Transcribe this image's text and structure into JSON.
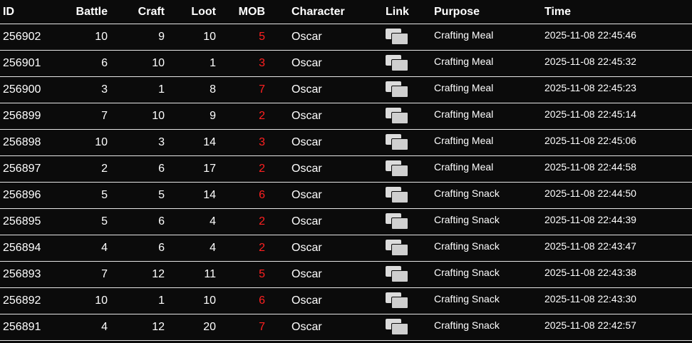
{
  "headers": {
    "id": "ID",
    "battle": "Battle",
    "craft": "Craft",
    "loot": "Loot",
    "mob": "MOB",
    "character": "Character",
    "link": "Link",
    "purpose": "Purpose",
    "time": "Time"
  },
  "colors": {
    "background": "#0b0b0b",
    "mob": "#ff2020"
  },
  "rows": [
    {
      "id": "256902",
      "battle": "10",
      "craft": "9",
      "loot": "10",
      "mob": "5",
      "character": "Oscar",
      "link": "chat-icon",
      "purpose": "Crafting Meal",
      "time": "2025-11-08 22:45:46"
    },
    {
      "id": "256901",
      "battle": "6",
      "craft": "10",
      "loot": "1",
      "mob": "3",
      "character": "Oscar",
      "link": "chat-icon",
      "purpose": "Crafting Meal",
      "time": "2025-11-08 22:45:32"
    },
    {
      "id": "256900",
      "battle": "3",
      "craft": "1",
      "loot": "8",
      "mob": "7",
      "character": "Oscar",
      "link": "chat-icon",
      "purpose": "Crafting Meal",
      "time": "2025-11-08 22:45:23"
    },
    {
      "id": "256899",
      "battle": "7",
      "craft": "10",
      "loot": "9",
      "mob": "2",
      "character": "Oscar",
      "link": "chat-icon",
      "purpose": "Crafting Meal",
      "time": "2025-11-08 22:45:14"
    },
    {
      "id": "256898",
      "battle": "10",
      "craft": "3",
      "loot": "14",
      "mob": "3",
      "character": "Oscar",
      "link": "chat-icon",
      "purpose": "Crafting Meal",
      "time": "2025-11-08 22:45:06"
    },
    {
      "id": "256897",
      "battle": "2",
      "craft": "6",
      "loot": "17",
      "mob": "2",
      "character": "Oscar",
      "link": "chat-icon",
      "purpose": "Crafting Meal",
      "time": "2025-11-08 22:44:58"
    },
    {
      "id": "256896",
      "battle": "5",
      "craft": "5",
      "loot": "14",
      "mob": "6",
      "character": "Oscar",
      "link": "chat-icon",
      "purpose": "Crafting Snack",
      "time": "2025-11-08 22:44:50"
    },
    {
      "id": "256895",
      "battle": "5",
      "craft": "6",
      "loot": "4",
      "mob": "2",
      "character": "Oscar",
      "link": "chat-icon",
      "purpose": "Crafting Snack",
      "time": "2025-11-08 22:44:39"
    },
    {
      "id": "256894",
      "battle": "4",
      "craft": "6",
      "loot": "4",
      "mob": "2",
      "character": "Oscar",
      "link": "chat-icon",
      "purpose": "Crafting Snack",
      "time": "2025-11-08 22:43:47"
    },
    {
      "id": "256893",
      "battle": "7",
      "craft": "12",
      "loot": "11",
      "mob": "5",
      "character": "Oscar",
      "link": "chat-icon",
      "purpose": "Crafting Snack",
      "time": "2025-11-08 22:43:38"
    },
    {
      "id": "256892",
      "battle": "10",
      "craft": "1",
      "loot": "10",
      "mob": "6",
      "character": "Oscar",
      "link": "chat-icon",
      "purpose": "Crafting Snack",
      "time": "2025-11-08 22:43:30"
    },
    {
      "id": "256891",
      "battle": "4",
      "craft": "12",
      "loot": "20",
      "mob": "7",
      "character": "Oscar",
      "link": "chat-icon",
      "purpose": "Crafting Snack",
      "time": "2025-11-08 22:42:57"
    }
  ]
}
